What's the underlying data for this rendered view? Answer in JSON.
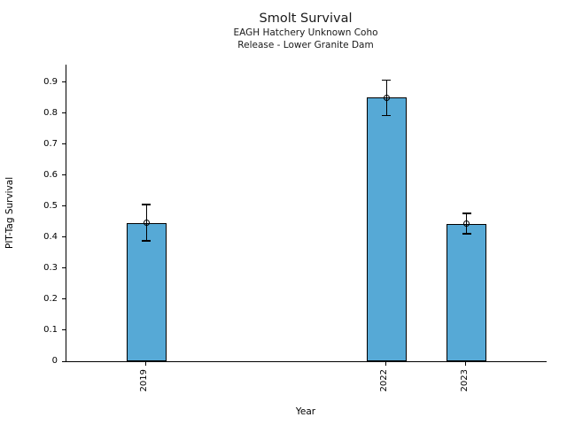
{
  "chart_data": {
    "type": "bar",
    "title": "Smolt Survival",
    "subtitle_lines": [
      "EAGH Hatchery Unknown Coho",
      "Release - Lower Granite Dam"
    ],
    "xlabel": "Year",
    "ylabel": "PIT-Tag Survival",
    "categories": [
      "2019",
      "2022",
      "2023"
    ],
    "x": [
      2019,
      2022,
      2023
    ],
    "values": [
      0.447,
      0.85,
      0.444
    ],
    "errors": [
      0.058,
      0.057,
      0.033
    ],
    "bar_width": 0.5,
    "xlim": [
      2018,
      2024
    ],
    "ylim": [
      0,
      0.957
    ],
    "yticks": [
      0,
      0.1,
      0.2,
      0.3,
      0.4,
      0.5,
      0.6,
      0.7,
      0.8,
      0.9
    ],
    "ytick_labels": [
      "0",
      "0.1",
      "0.2",
      "0.3",
      "0.4",
      "0.5",
      "0.6",
      "0.7",
      "0.8",
      "0.9"
    ],
    "grid": false,
    "legend": null,
    "marker": "open-circle",
    "error_bars": true,
    "colors": {
      "bar_fill": "#56a9d6",
      "bar_edge": "#000000",
      "error": "#000000",
      "text": "#000000",
      "background": "#ffffff"
    }
  }
}
